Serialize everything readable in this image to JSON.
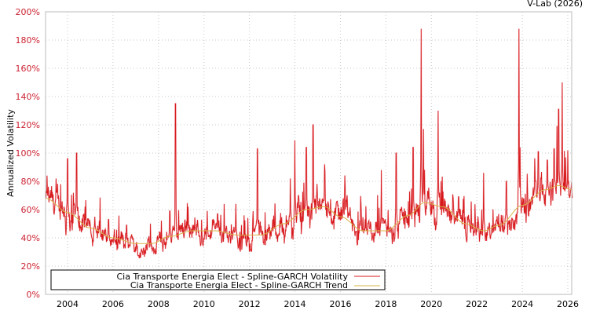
{
  "credit": "V-Lab (2026)",
  "chart_data": {
    "type": "line",
    "title": "",
    "xlabel": "",
    "ylabel": "Annualized Volatility",
    "xlim": [
      2003.05,
      2026.2
    ],
    "ylim": [
      0,
      200
    ],
    "grid": true,
    "legend_position": "bottom-left-inside",
    "x_ticks": [
      "2004",
      "2006",
      "2008",
      "2010",
      "2012",
      "2014",
      "2016",
      "2018",
      "2020",
      "2022",
      "2024",
      "2026"
    ],
    "x_tick_values": [
      2004,
      2006,
      2008,
      2010,
      2012,
      2014,
      2016,
      2018,
      2020,
      2022,
      2024,
      2026
    ],
    "y_ticks": [
      "0%",
      "20%",
      "40%",
      "60%",
      "80%",
      "100%",
      "120%",
      "140%",
      "160%",
      "180%",
      "200%"
    ],
    "y_tick_values": [
      0,
      20,
      40,
      60,
      80,
      100,
      120,
      140,
      160,
      180,
      200
    ],
    "colors": {
      "volatility": "#d7191c",
      "trend": "#d9b44a",
      "tick_label": "#cc2233"
    },
    "series": [
      {
        "name": "Cia Transporte Energia Elect - Spline-GARCH Volatility",
        "color": "#d7191c",
        "note": "daily series; approximate trend-following values with spikes",
        "spikes": [
          {
            "x": 2003.1,
            "y": 84
          },
          {
            "x": 2003.5,
            "y": 82
          },
          {
            "x": 2004.0,
            "y": 96
          },
          {
            "x": 2004.4,
            "y": 100
          },
          {
            "x": 2005.2,
            "y": 55
          },
          {
            "x": 2005.8,
            "y": 53
          },
          {
            "x": 2006.6,
            "y": 49
          },
          {
            "x": 2008.5,
            "y": 59
          },
          {
            "x": 2008.75,
            "y": 135
          },
          {
            "x": 2009.3,
            "y": 62
          },
          {
            "x": 2010.6,
            "y": 57
          },
          {
            "x": 2011.4,
            "y": 64
          },
          {
            "x": 2012.35,
            "y": 103
          },
          {
            "x": 2013.8,
            "y": 82
          },
          {
            "x": 2014.0,
            "y": 109
          },
          {
            "x": 2014.5,
            "y": 104
          },
          {
            "x": 2014.8,
            "y": 120
          },
          {
            "x": 2015.3,
            "y": 92
          },
          {
            "x": 2016.9,
            "y": 64
          },
          {
            "x": 2017.8,
            "y": 88
          },
          {
            "x": 2018.45,
            "y": 100
          },
          {
            "x": 2019.2,
            "y": 104
          },
          {
            "x": 2019.55,
            "y": 188
          },
          {
            "x": 2019.65,
            "y": 117
          },
          {
            "x": 2020.3,
            "y": 130
          },
          {
            "x": 2021.2,
            "y": 69
          },
          {
            "x": 2022.3,
            "y": 86
          },
          {
            "x": 2023.3,
            "y": 80
          },
          {
            "x": 2023.85,
            "y": 188
          },
          {
            "x": 2023.9,
            "y": 104
          },
          {
            "x": 2024.7,
            "y": 101
          },
          {
            "x": 2025.1,
            "y": 95
          },
          {
            "x": 2025.4,
            "y": 103
          },
          {
            "x": 2025.6,
            "y": 131
          },
          {
            "x": 2025.75,
            "y": 150
          },
          {
            "x": 2026.0,
            "y": 90
          }
        ]
      },
      {
        "name": "Cia Transporte Energia Elect - Spline-GARCH Trend",
        "color": "#d9b44a",
        "x": [
          2003.05,
          2004.0,
          2005.0,
          2006.0,
          2007.0,
          2007.7,
          2008.5,
          2009.5,
          2010.5,
          2011.5,
          2012.5,
          2013.5,
          2014.5,
          2015.3,
          2016.0,
          2017.0,
          2018.0,
          2019.0,
          2019.7,
          2020.5,
          2021.5,
          2022.3,
          2023.0,
          2024.0,
          2025.0,
          2025.6,
          2026.2
        ],
        "values": [
          68,
          58,
          47,
          40,
          36,
          36,
          41,
          45,
          45,
          42,
          42,
          50,
          60,
          62,
          55,
          45,
          45,
          56,
          65,
          62,
          50,
          45,
          49,
          63,
          74,
          77,
          74
        ]
      }
    ]
  },
  "legend": {
    "items": [
      {
        "label": "Cia Transporte Energia Elect - Spline-GARCH Volatility",
        "color": "#d7191c"
      },
      {
        "label": "Cia Transporte Energia Elect - Spline-GARCH Trend",
        "color": "#d9b44a"
      }
    ]
  }
}
